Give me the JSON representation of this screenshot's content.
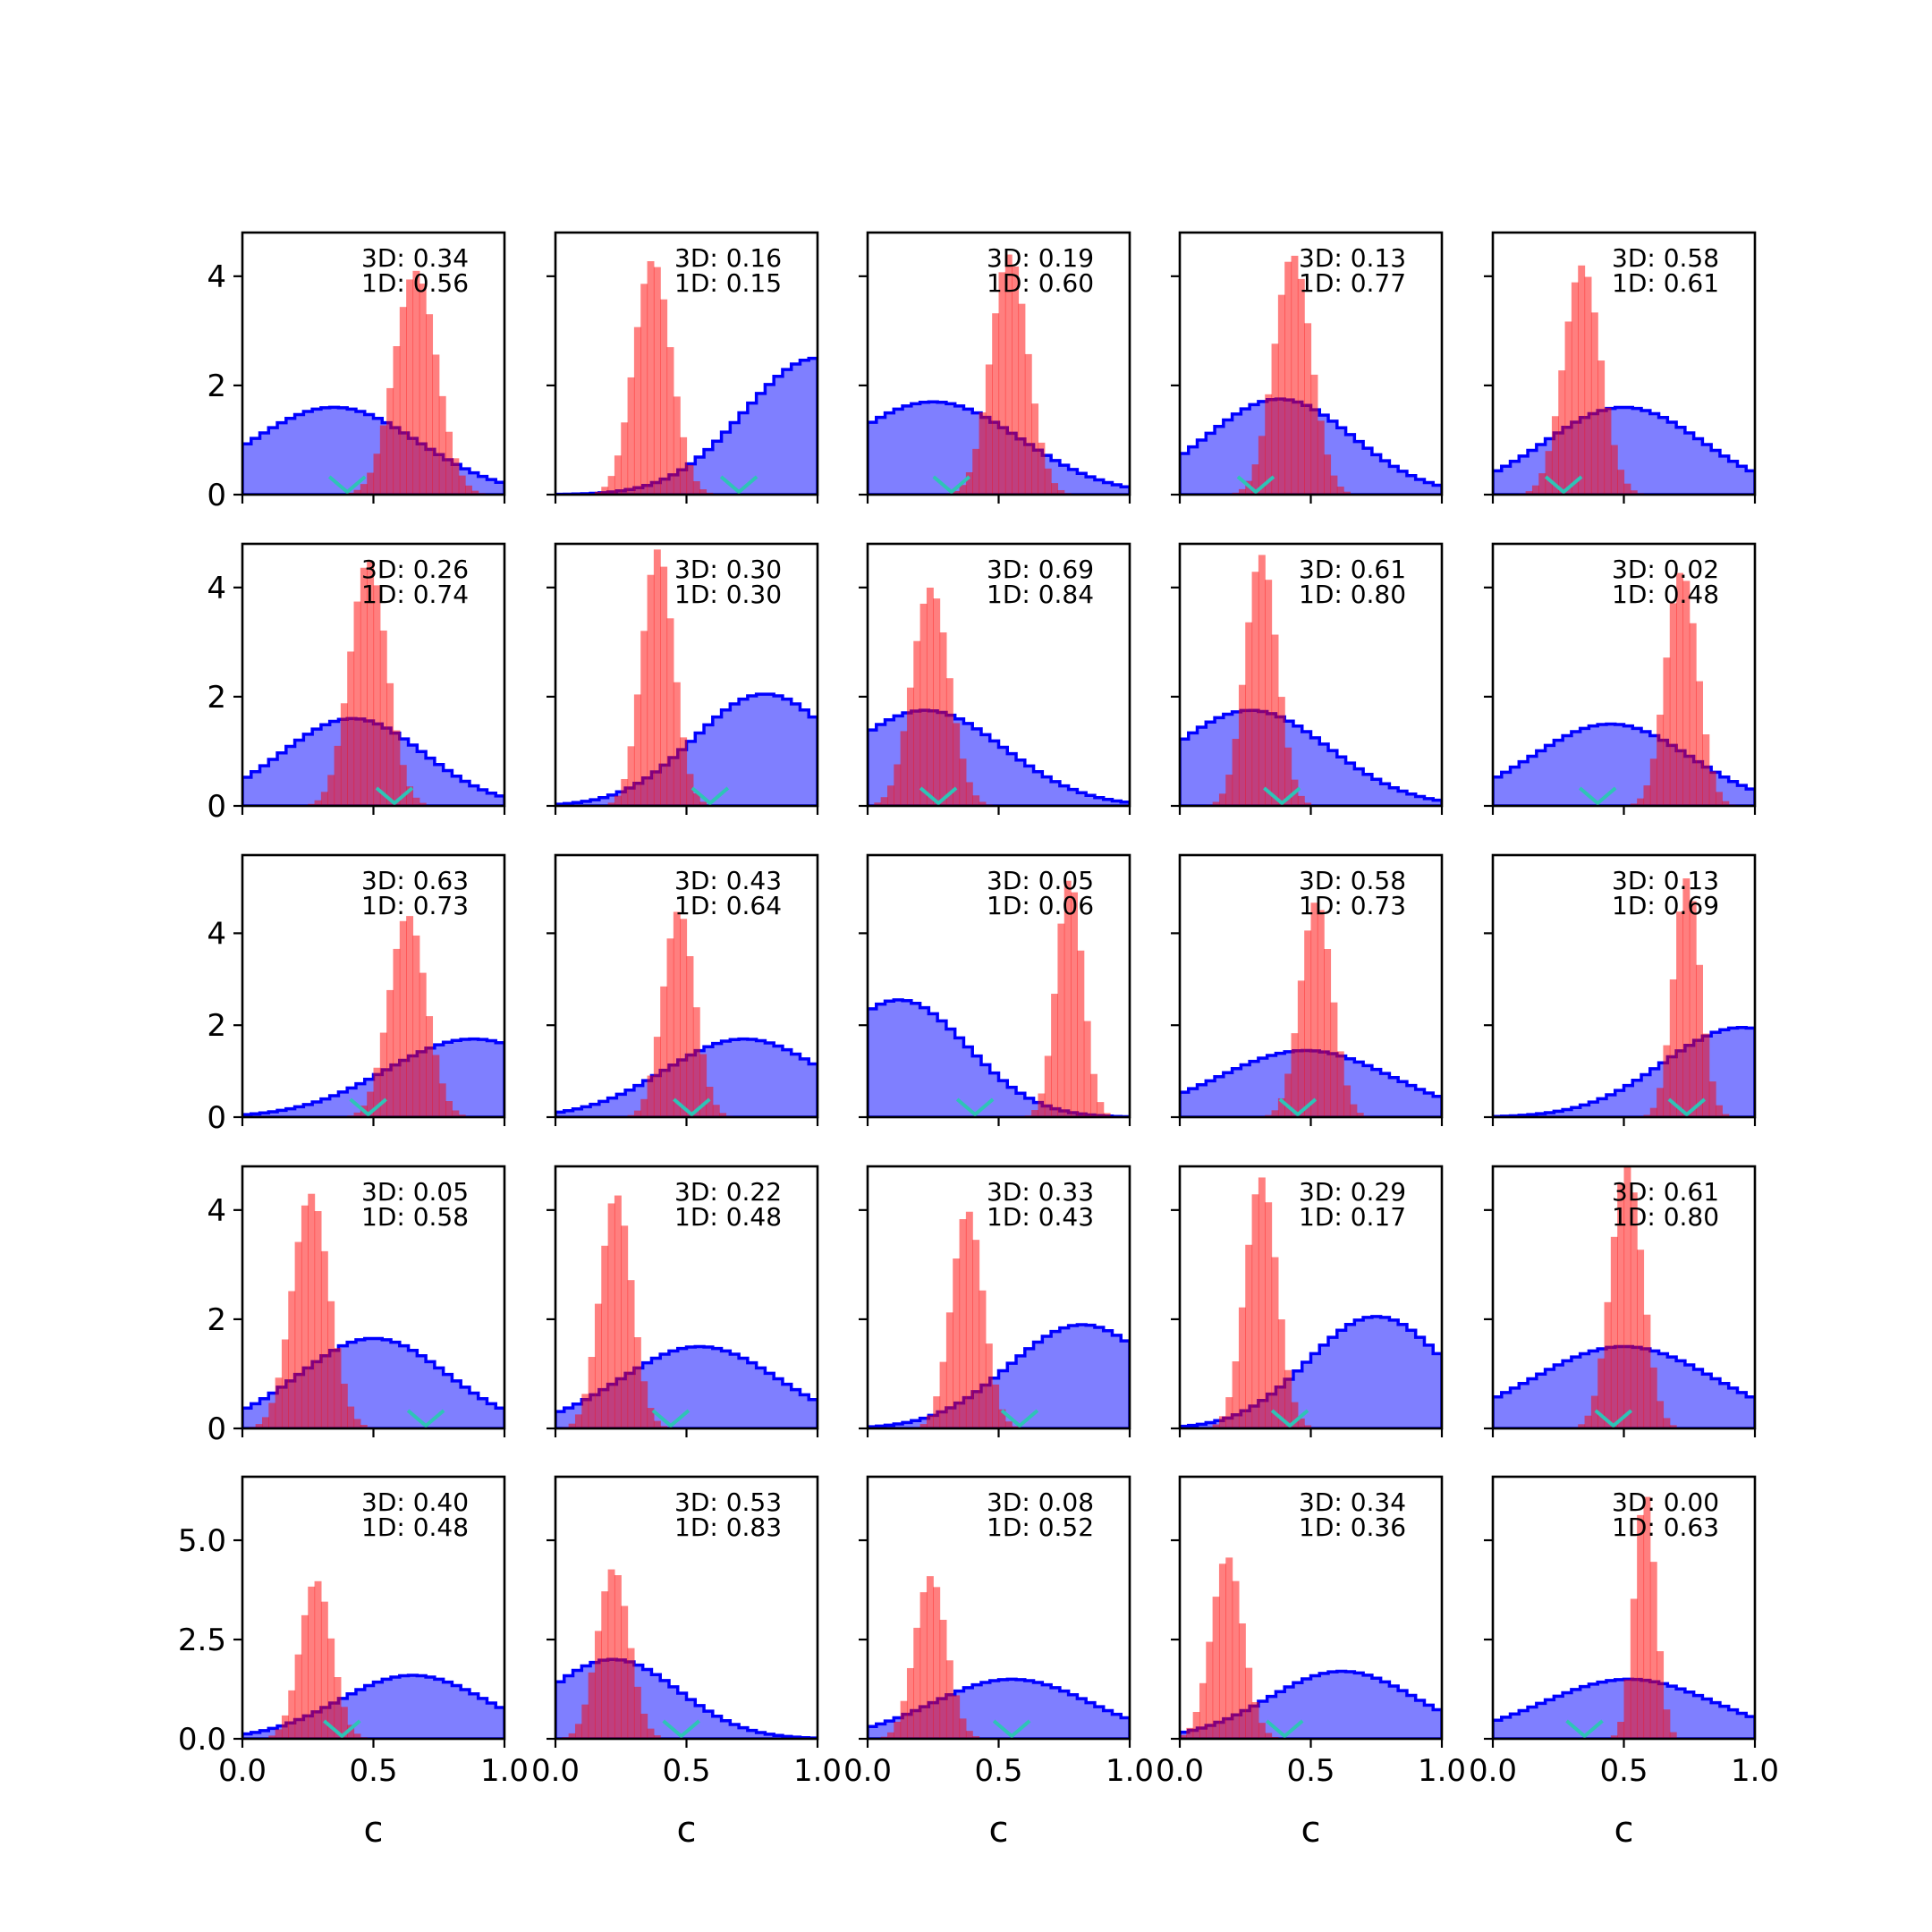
{
  "chart_data": {
    "type": "histogram-grid",
    "rows": 5,
    "cols": 5,
    "xlabel": "c",
    "xlim": [
      0,
      1
    ],
    "xticks": [
      0,
      0.5,
      1
    ],
    "xtick_labels": [
      "0.0",
      "0.5",
      "1.0"
    ],
    "row_ylim": [
      [
        0,
        4.8
      ],
      [
        0,
        4.8
      ],
      [
        0,
        5.7
      ],
      [
        0,
        4.8
      ],
      [
        0,
        6.6
      ]
    ],
    "row_yticks": [
      [
        0,
        2,
        4
      ],
      [
        0,
        2,
        4
      ],
      [
        0,
        2,
        4
      ],
      [
        0,
        2,
        4
      ],
      [
        0,
        2.5,
        5
      ]
    ],
    "row_ytick_labels": [
      [
        "0",
        "2",
        "4"
      ],
      [
        "0",
        "2",
        "4"
      ],
      [
        "0",
        "2",
        "4"
      ],
      [
        "0",
        "2",
        "4"
      ],
      [
        "0.0",
        "2.5",
        "5.0"
      ]
    ],
    "colors": {
      "prior": "#0000ff",
      "posterior": "#ff0000",
      "marker": "#2ec4b6"
    },
    "panels": [
      {
        "label_3d": "3D: 0.34",
        "label_1d": "1D: 0.56",
        "prior_mode": 0.35,
        "prior_sd": 0.32,
        "prior_peak": 1.6,
        "post_mu": 0.66,
        "post_sd": 0.08,
        "post_peak": 4.1,
        "marker": 0.4
      },
      {
        "label_3d": "3D: 0.16",
        "label_1d": "1D: 0.15",
        "prior_mode": 1.0,
        "prior_sd": 0.28,
        "prior_peak": 2.5,
        "post_mu": 0.37,
        "post_sd": 0.07,
        "post_peak": 4.3,
        "marker": 0.7
      },
      {
        "label_3d": "3D: 0.19",
        "label_1d": "1D: 0.60",
        "prior_mode": 0.25,
        "prior_sd": 0.33,
        "prior_peak": 1.7,
        "post_mu": 0.54,
        "post_sd": 0.07,
        "post_peak": 4.4,
        "marker": 0.32
      },
      {
        "label_3d": "3D: 0.13",
        "label_1d": "1D: 0.77",
        "prior_mode": 0.38,
        "prior_sd": 0.28,
        "prior_peak": 1.75,
        "post_mu": 0.43,
        "post_sd": 0.07,
        "post_peak": 4.4,
        "marker": 0.29
      },
      {
        "label_3d": "3D: 0.58",
        "label_1d": "1D: 0.61",
        "prior_mode": 0.5,
        "prior_sd": 0.3,
        "prior_peak": 1.6,
        "post_mu": 0.34,
        "post_sd": 0.07,
        "post_peak": 4.2,
        "marker": 0.27
      },
      {
        "label_3d": "3D: 0.26",
        "label_1d": "1D: 0.74",
        "prior_mode": 0.42,
        "prior_sd": 0.27,
        "prior_peak": 1.6,
        "post_mu": 0.48,
        "post_sd": 0.07,
        "post_peak": 4.5,
        "marker": 0.58
      },
      {
        "label_3d": "3D: 0.30",
        "label_1d": "1D: 0.30",
        "prior_mode": 0.8,
        "prior_sd": 0.27,
        "prior_peak": 2.05,
        "post_mu": 0.39,
        "post_sd": 0.06,
        "post_peak": 4.7,
        "marker": 0.59
      },
      {
        "label_3d": "3D: 0.69",
        "label_1d": "1D: 0.84",
        "prior_mode": 0.22,
        "prior_sd": 0.3,
        "prior_peak": 1.75,
        "post_mu": 0.24,
        "post_sd": 0.07,
        "post_peak": 4.0,
        "marker": 0.27
      },
      {
        "label_3d": "3D: 0.61",
        "label_1d": "1D: 0.80",
        "prior_mode": 0.27,
        "prior_sd": 0.3,
        "prior_peak": 1.75,
        "post_mu": 0.31,
        "post_sd": 0.06,
        "post_peak": 4.6,
        "marker": 0.39
      },
      {
        "label_3d": "3D: 0.02",
        "label_1d": "1D: 0.48",
        "prior_mode": 0.45,
        "prior_sd": 0.3,
        "prior_peak": 1.5,
        "post_mu": 0.72,
        "post_sd": 0.06,
        "post_peak": 4.3,
        "marker": 0.4
      },
      {
        "label_3d": "3D: 0.63",
        "label_1d": "1D: 0.73",
        "prior_mode": 0.88,
        "prior_sd": 0.33,
        "prior_peak": 1.7,
        "post_mu": 0.63,
        "post_sd": 0.07,
        "post_peak": 4.4,
        "marker": 0.48
      },
      {
        "label_3d": "3D: 0.43",
        "label_1d": "1D: 0.64",
        "prior_mode": 0.72,
        "prior_sd": 0.3,
        "prior_peak": 1.7,
        "post_mu": 0.47,
        "post_sd": 0.06,
        "post_peak": 4.5,
        "marker": 0.52
      },
      {
        "label_3d": "3D: 0.05",
        "label_1d": "1D: 0.06",
        "prior_mode": 0.12,
        "prior_sd": 0.26,
        "prior_peak": 2.55,
        "post_mu": 0.77,
        "post_sd": 0.05,
        "post_peak": 5.2,
        "marker": 0.41
      },
      {
        "label_3d": "3D: 0.58",
        "label_1d": "1D: 0.73",
        "prior_mode": 0.48,
        "prior_sd": 0.33,
        "prior_peak": 1.45,
        "post_mu": 0.52,
        "post_sd": 0.06,
        "post_peak": 4.7,
        "marker": 0.45
      },
      {
        "label_3d": "3D: 0.13",
        "label_1d": "1D: 0.69",
        "prior_mode": 0.95,
        "prior_sd": 0.3,
        "prior_peak": 1.95,
        "post_mu": 0.74,
        "post_sd": 0.05,
        "post_peak": 5.2,
        "marker": 0.74
      },
      {
        "label_3d": "3D: 0.05",
        "label_1d": "1D: 0.58",
        "prior_mode": 0.5,
        "prior_sd": 0.28,
        "prior_peak": 1.65,
        "post_mu": 0.26,
        "post_sd": 0.07,
        "post_peak": 4.3,
        "marker": 0.7
      },
      {
        "label_3d": "3D: 0.22",
        "label_1d": "1D: 0.48",
        "prior_mode": 0.55,
        "prior_sd": 0.3,
        "prior_peak": 1.5,
        "post_mu": 0.23,
        "post_sd": 0.06,
        "post_peak": 4.3,
        "marker": 0.44
      },
      {
        "label_3d": "3D: 0.33",
        "label_1d": "1D: 0.43",
        "prior_mode": 0.82,
        "prior_sd": 0.28,
        "prior_peak": 1.9,
        "post_mu": 0.38,
        "post_sd": 0.06,
        "post_peak": 4.0,
        "marker": 0.58
      },
      {
        "label_3d": "3D: 0.29",
        "label_1d": "1D: 0.17",
        "prior_mode": 0.75,
        "prior_sd": 0.26,
        "prior_peak": 2.05,
        "post_mu": 0.31,
        "post_sd": 0.06,
        "post_peak": 4.6,
        "marker": 0.42
      },
      {
        "label_3d": "3D: 0.61",
        "label_1d": "1D: 0.80",
        "prior_mode": 0.5,
        "prior_sd": 0.35,
        "prior_peak": 1.5,
        "post_mu": 0.51,
        "post_sd": 0.06,
        "post_peak": 4.8,
        "marker": 0.46
      },
      {
        "label_3d": "3D: 0.40",
        "label_1d": "1D: 0.48",
        "prior_mode": 0.65,
        "prior_sd": 0.28,
        "prior_peak": 1.6,
        "post_mu": 0.28,
        "post_sd": 0.06,
        "post_peak": 4.0,
        "marker": 0.38
      },
      {
        "label_3d": "3D: 0.53",
        "label_1d": "1D: 0.83",
        "prior_mode": 0.22,
        "prior_sd": 0.25,
        "prior_peak": 2.0,
        "post_mu": 0.22,
        "post_sd": 0.06,
        "post_peak": 4.3,
        "marker": 0.48
      },
      {
        "label_3d": "3D: 0.08",
        "label_1d": "1D: 0.52",
        "prior_mode": 0.55,
        "prior_sd": 0.3,
        "prior_peak": 1.5,
        "post_mu": 0.24,
        "post_sd": 0.06,
        "post_peak": 4.1,
        "marker": 0.55
      },
      {
        "label_3d": "3D: 0.34",
        "label_1d": "1D: 0.36",
        "prior_mode": 0.62,
        "prior_sd": 0.28,
        "prior_peak": 1.7,
        "post_mu": 0.18,
        "post_sd": 0.06,
        "post_peak": 4.6,
        "marker": 0.4
      },
      {
        "label_3d": "3D: 0.00",
        "label_1d": "1D: 0.63",
        "prior_mode": 0.52,
        "prior_sd": 0.33,
        "prior_peak": 1.5,
        "post_mu": 0.58,
        "post_sd": 0.04,
        "post_peak": 6.2,
        "marker": 0.35
      }
    ]
  }
}
